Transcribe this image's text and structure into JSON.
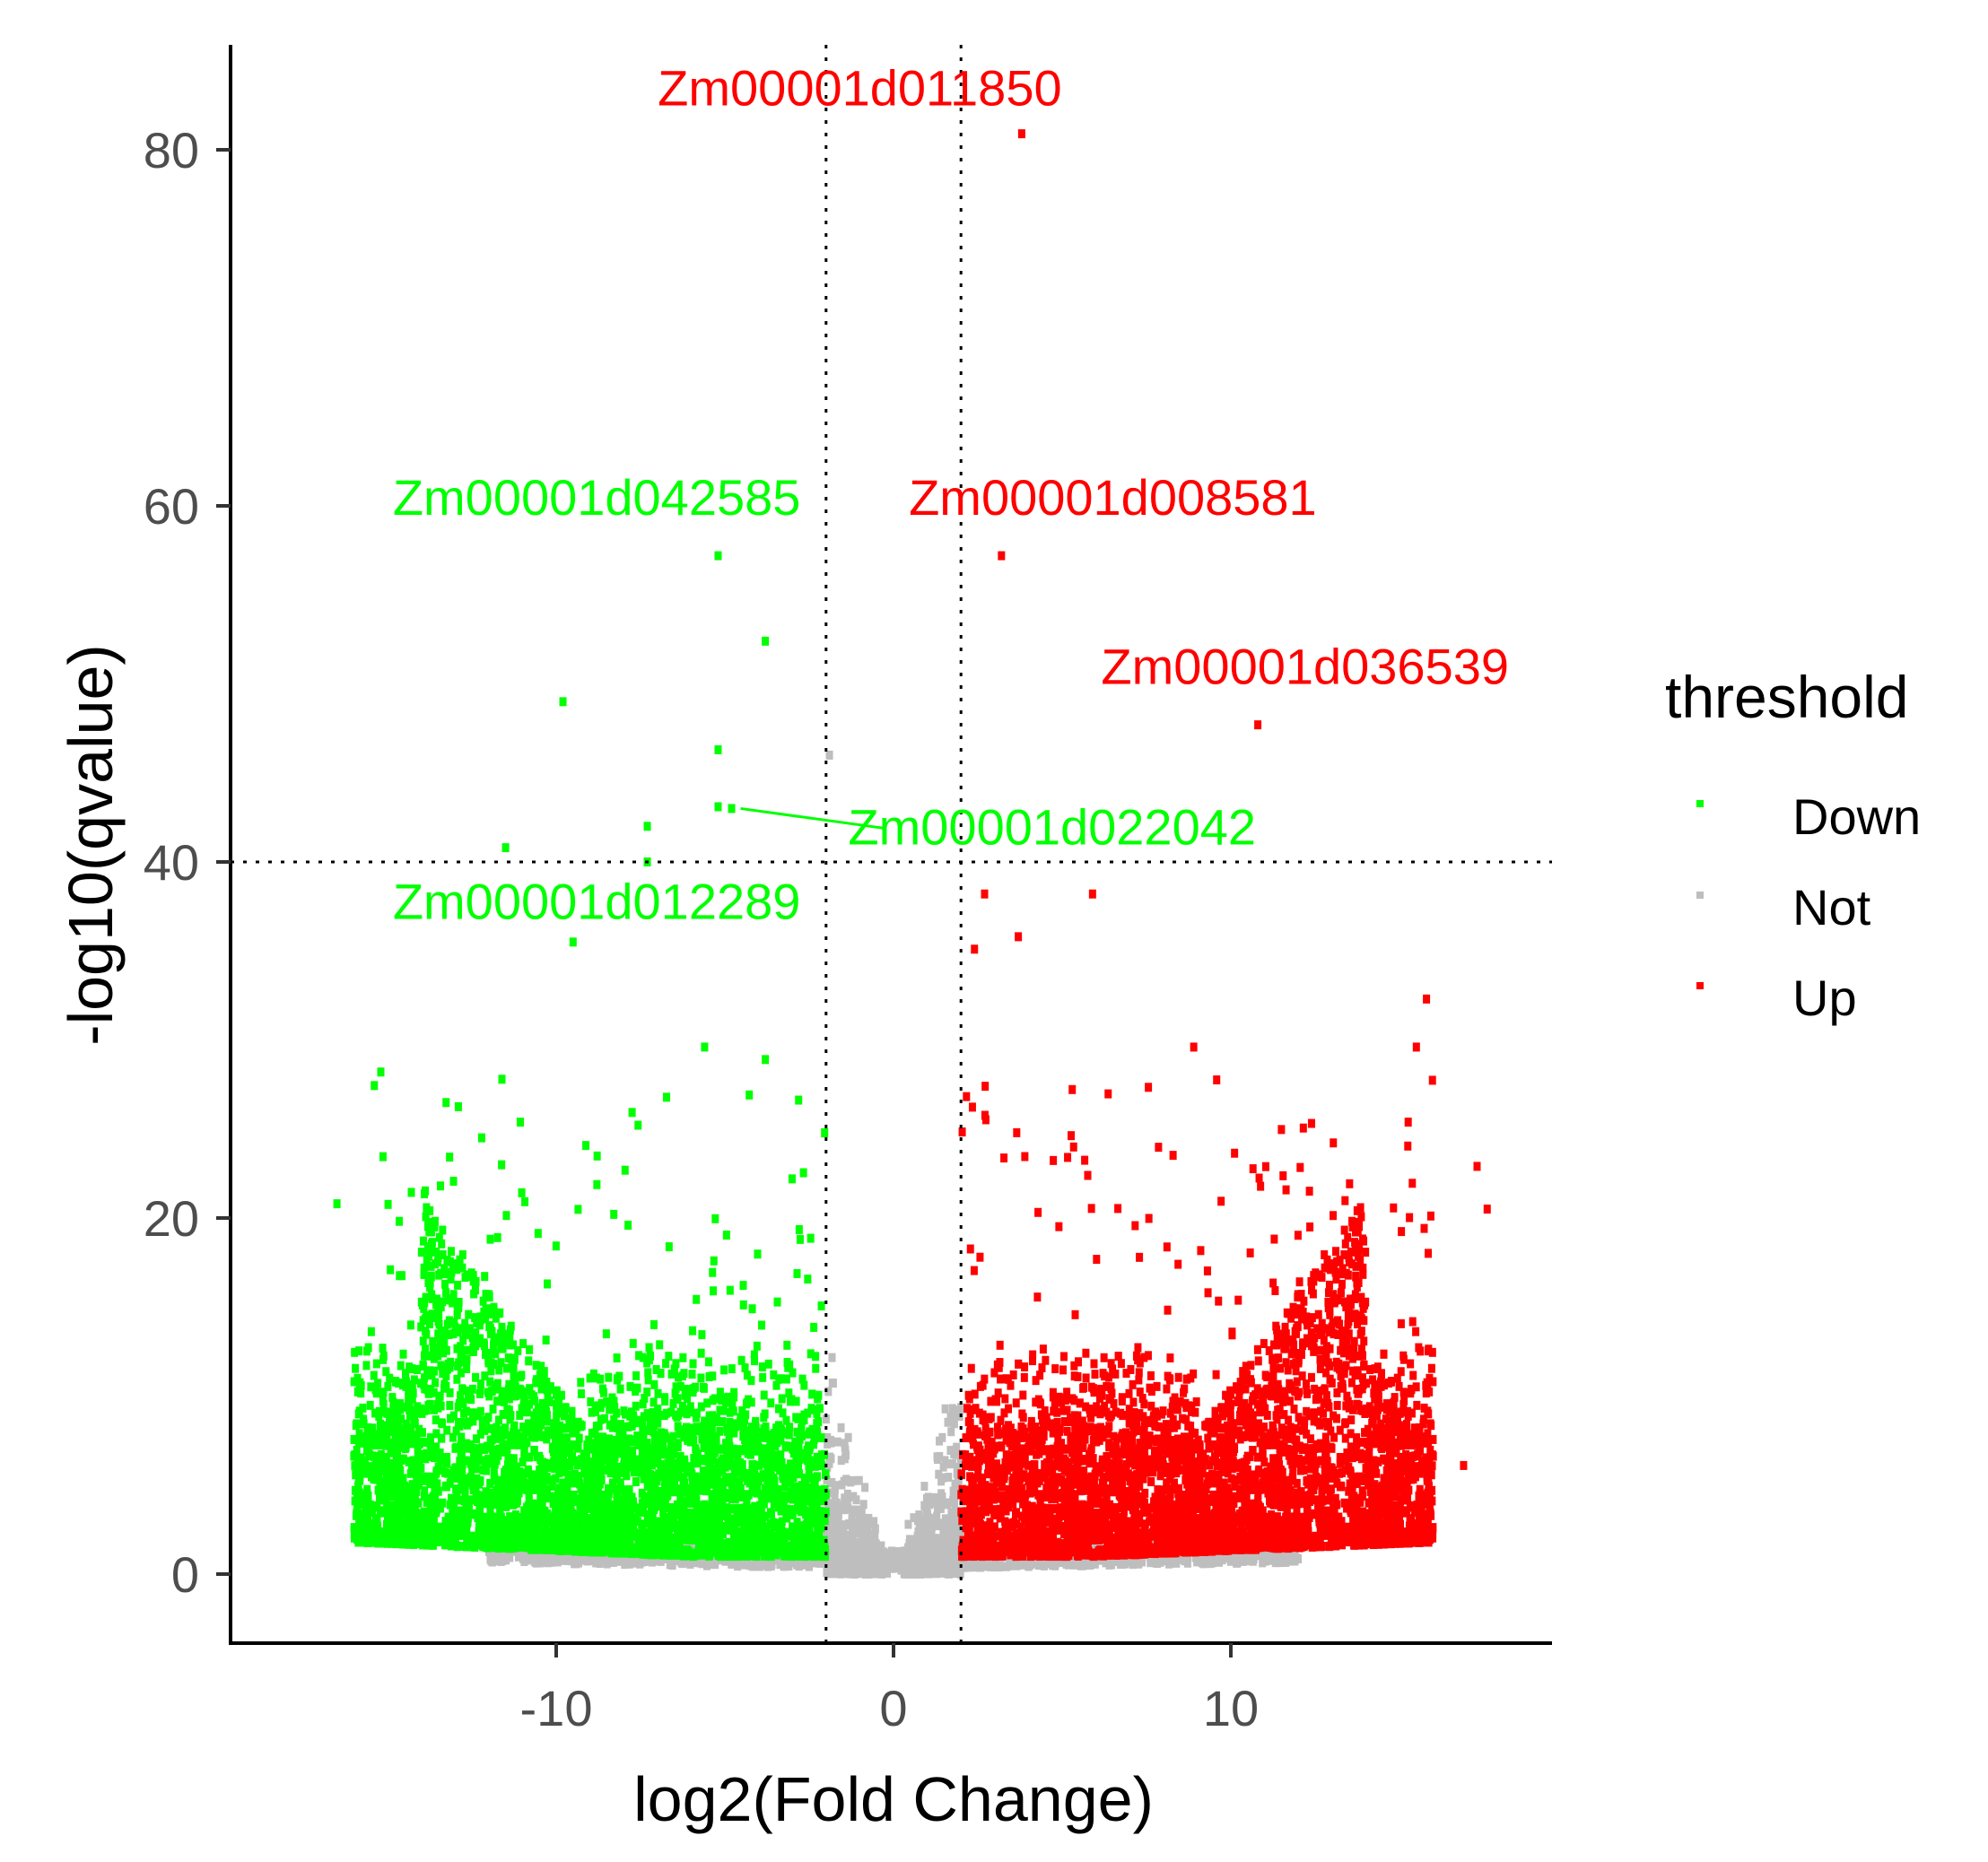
{
  "chart_data": {
    "type": "scatter",
    "subtype": "volcano",
    "title": "",
    "xlabel": "log2(Fold Change)",
    "ylabel": "-log10(qvalue)",
    "xlim": [
      -19.7,
      19.5
    ],
    "ylim": [
      -4,
      86
    ],
    "x_ticks": [
      -10,
      0,
      10
    ],
    "x_tick_labels": [
      "-10",
      "0",
      "10"
    ],
    "y_ticks": [
      0,
      20,
      40,
      60,
      80
    ],
    "y_tick_labels": [
      "0",
      "20",
      "40",
      "60",
      "80"
    ],
    "grid": false,
    "reference_lines": {
      "vertical_dotted": [
        -2,
        2
      ],
      "horizontal_dotted": [
        40
      ]
    },
    "legend": {
      "title": "threshold",
      "position": "right",
      "entries": [
        {
          "label": "Down",
          "color": "#00ff00"
        },
        {
          "label": "Not",
          "color": "#bebebe"
        },
        {
          "label": "Up",
          "color": "#ff0000"
        }
      ]
    },
    "series": [
      {
        "name": "Down",
        "color": "#00ff00",
        "description": "log2FC < -2, dense cloud from about -16 to -2, mostly y 1-20, outliers up to ~57"
      },
      {
        "name": "Not",
        "color": "#bebebe",
        "description": "|log2FC| <= 2 or low significance, y mostly 0-20, one point near 46"
      },
      {
        "name": "Up",
        "color": "#ff0000",
        "description": "log2FC > 2, dense cloud from about 2 to 17, mostly y 1-20, outliers up to ~81"
      }
    ],
    "labeled_points": [
      {
        "gene": "Zm00001d011850",
        "x": 3.8,
        "y": 80.9,
        "group": "Up",
        "label_x": -1.0,
        "label_y": 83.5
      },
      {
        "gene": "Zm00001d042585",
        "x": -5.2,
        "y": 57.2,
        "group": "Down",
        "label_x": -8.8,
        "label_y": 60.5
      },
      {
        "gene": "Zm00001d008581",
        "x": 3.2,
        "y": 57.2,
        "group": "Up",
        "label_x": 6.5,
        "label_y": 60.5
      },
      {
        "gene": "Zm00001d036539",
        "x": 10.8,
        "y": 47.7,
        "group": "Up",
        "label_x": 12.2,
        "label_y": 51.0
      },
      {
        "gene": "Zm00001d022042",
        "x": -4.8,
        "y": 43.0,
        "group": "Down",
        "label_x": 4.7,
        "label_y": 42.0
      },
      {
        "gene": "Zm00001d012289",
        "x": -9.5,
        "y": 35.5,
        "group": "Down",
        "label_x": -8.8,
        "label_y": 37.8
      }
    ],
    "outliers": [
      {
        "x": -9.8,
        "y": 49.0,
        "group": "Down"
      },
      {
        "x": -3.8,
        "y": 52.4,
        "group": "Down"
      },
      {
        "x": -5.2,
        "y": 46.3,
        "group": "Down"
      },
      {
        "x": -5.2,
        "y": 43.1,
        "group": "Down"
      },
      {
        "x": -7.3,
        "y": 42.0,
        "group": "Down"
      },
      {
        "x": -11.5,
        "y": 40.8,
        "group": "Down"
      },
      {
        "x": -7.3,
        "y": 40.0,
        "group": "Down"
      },
      {
        "x": -1.9,
        "y": 46.0,
        "group": "Not"
      },
      {
        "x": 2.7,
        "y": 38.2,
        "group": "Up"
      },
      {
        "x": 5.9,
        "y": 38.2,
        "group": "Up"
      },
      {
        "x": 3.7,
        "y": 35.8,
        "group": "Up"
      },
      {
        "x": 2.4,
        "y": 35.1,
        "group": "Up"
      },
      {
        "x": 15.8,
        "y": 32.3,
        "group": "Up"
      },
      {
        "x": -5.6,
        "y": 29.6,
        "group": "Down"
      },
      {
        "x": -3.8,
        "y": 28.9,
        "group": "Down"
      },
      {
        "x": 8.9,
        "y": 29.6,
        "group": "Up"
      },
      {
        "x": 15.5,
        "y": 29.6,
        "group": "Up"
      },
      {
        "x": -15.2,
        "y": 28.2,
        "group": "Down"
      },
      {
        "x": 17.3,
        "y": 22.9,
        "group": "Up"
      },
      {
        "x": 17.6,
        "y": 20.5,
        "group": "Up"
      },
      {
        "x": -16.5,
        "y": 20.8,
        "group": "Down"
      },
      {
        "x": 16.9,
        "y": 6.1,
        "group": "Up"
      }
    ]
  }
}
